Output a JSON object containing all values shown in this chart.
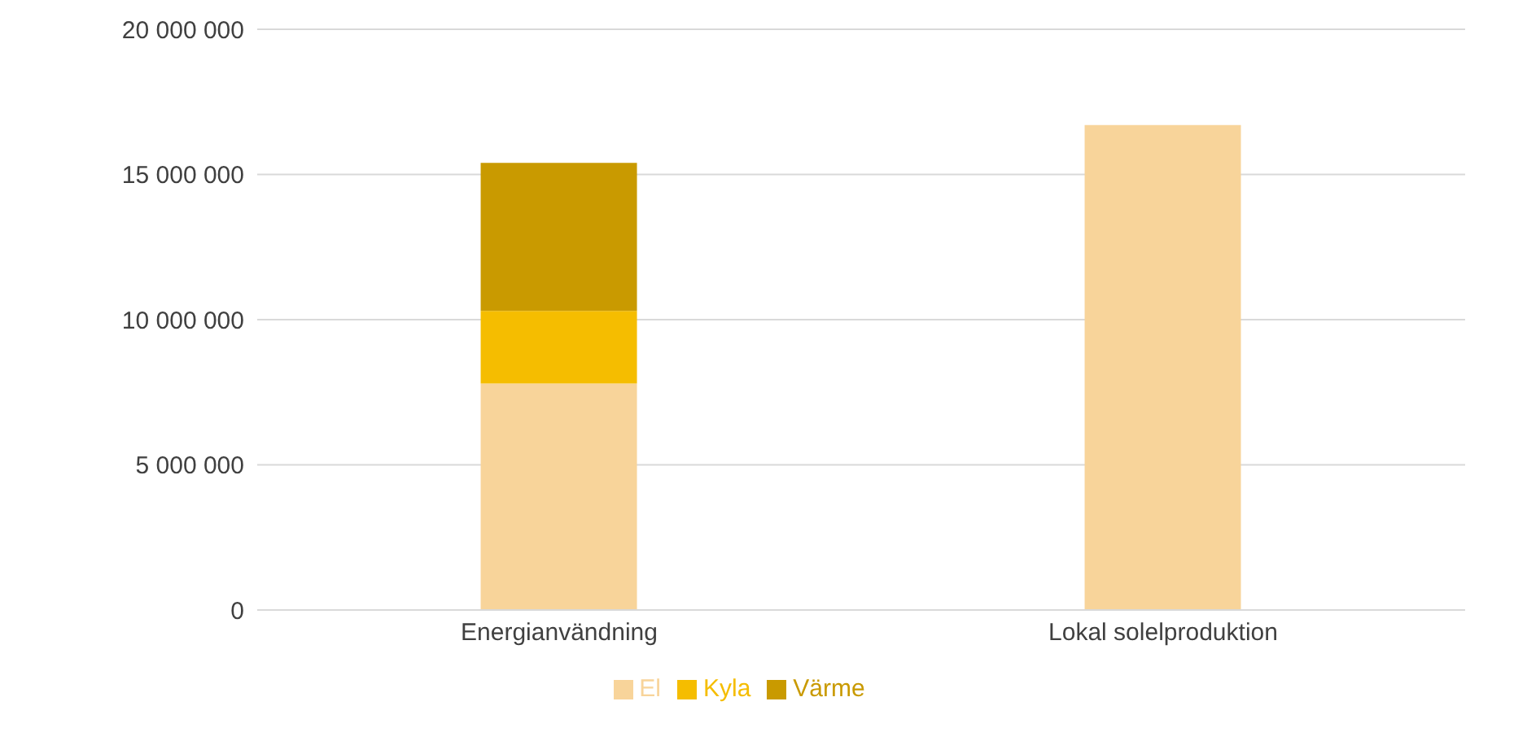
{
  "chart_data": {
    "type": "bar",
    "stacked": true,
    "categories": [
      "Energianvändning",
      "Lokal solelproduktion"
    ],
    "series": [
      {
        "name": "El",
        "color": "#f8d49a",
        "values": [
          7800000,
          16700000
        ]
      },
      {
        "name": "Kyla",
        "color": "#f5bd00",
        "values": [
          2500000,
          null
        ]
      },
      {
        "name": "Värme",
        "color": "#c99a00",
        "values": [
          5100000,
          null
        ]
      }
    ],
    "ylim": [
      0,
      20000000
    ],
    "yticks": [
      {
        "value": 0,
        "label": "0"
      },
      {
        "value": 5000000,
        "label": "5 000 000"
      },
      {
        "value": 10000000,
        "label": "10 000 000"
      },
      {
        "value": 15000000,
        "label": "15 000 000"
      },
      {
        "value": 20000000,
        "label": "20 000 000"
      }
    ],
    "grid": "y",
    "legend": "bottom"
  }
}
